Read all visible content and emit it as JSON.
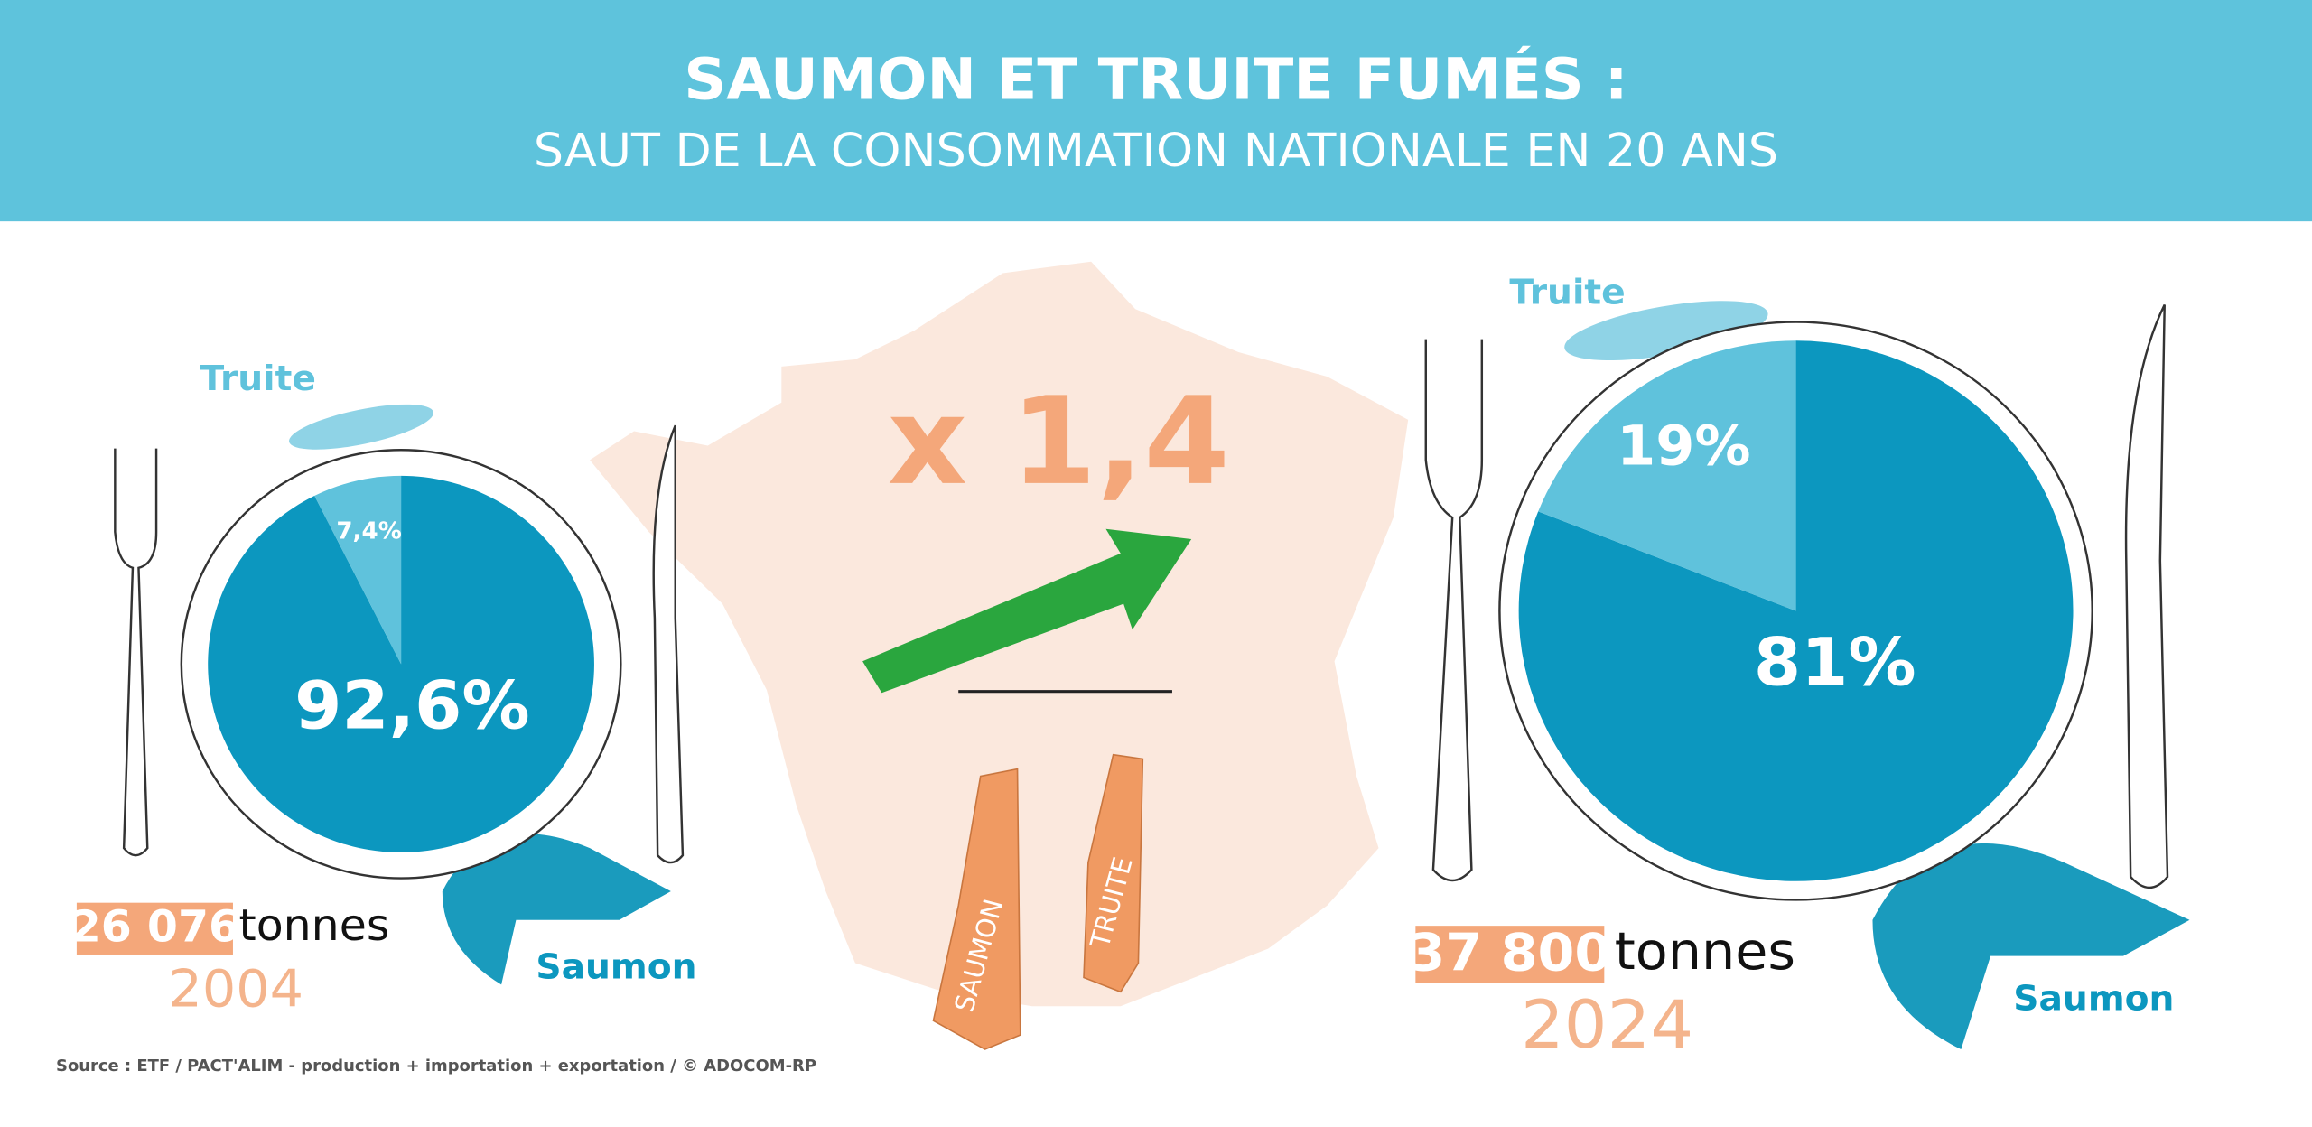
{
  "header": {
    "title": "SAUMON ET TRUITE FUMÉS :",
    "subtitle": "SAUT DE LA CONSOMMATION NATIONALE EN 20 ANS"
  },
  "chart_data": [
    {
      "type": "pie",
      "categories": [
        "Saumon",
        "Truite"
      ],
      "values": [
        92.6,
        7.4
      ],
      "value_labels": [
        "92,6%",
        "7,4%"
      ],
      "colors": [
        "#0c97bf",
        "#5fc2dc"
      ],
      "tonnage": "26 076",
      "unit": "tonnes",
      "year": "2004"
    },
    {
      "type": "pie",
      "categories": [
        "Saumon",
        "Truite"
      ],
      "values": [
        81,
        19
      ],
      "value_labels": [
        "81%",
        "19%"
      ],
      "colors": [
        "#0c97bf",
        "#5fc2dc"
      ],
      "tonnage": "37 800",
      "unit": "tonnes",
      "year": "2024"
    }
  ],
  "multiplier": "x 1,4",
  "tags": [
    "SAUMON",
    "TRUITE"
  ],
  "source": "Source : ETF / PACT'ALIM - production + importation + exportation / © ADOCOM-RP"
}
